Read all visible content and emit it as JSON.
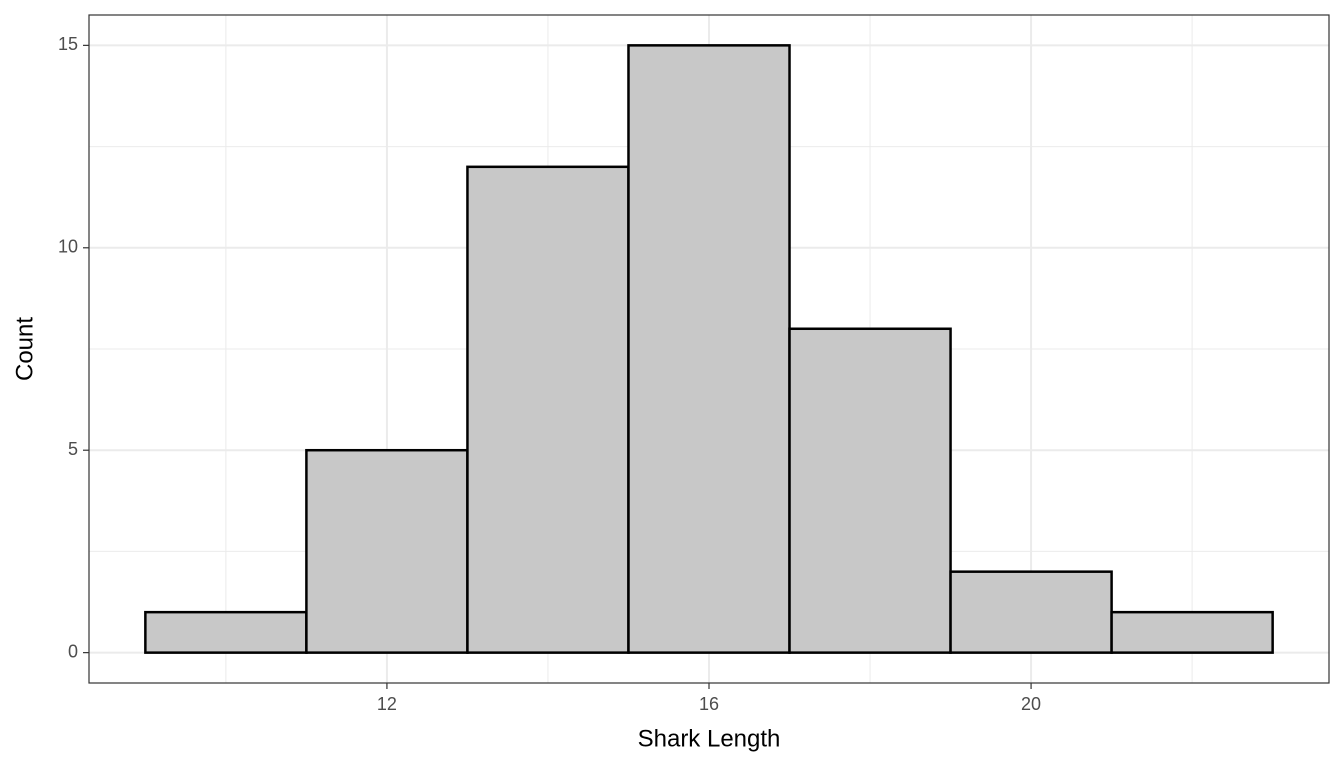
{
  "chart_data": {
    "type": "histogram",
    "x_label": "Shark Length",
    "y_label": "Count",
    "bins": [
      9,
      11,
      13,
      15,
      17,
      19,
      21,
      23
    ],
    "counts": [
      1,
      5,
      12,
      15,
      8,
      2,
      1
    ],
    "color": "#c8c8c8",
    "edge_color": "#000000",
    "xlim": [
      8.3,
      23.7
    ],
    "ylim": [
      -0.75,
      15.75
    ],
    "xticks": [
      12,
      16,
      20
    ],
    "yticks": [
      0,
      5,
      10,
      15
    ],
    "x_minor_grid": [
      10,
      14,
      18,
      22
    ],
    "y_minor_grid": [
      2.5,
      7.5,
      12.5
    ],
    "grid": true
  }
}
